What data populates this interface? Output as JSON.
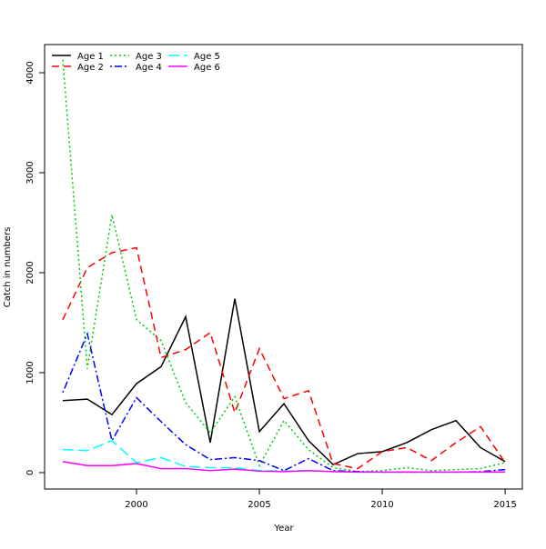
{
  "chart_data": {
    "type": "line",
    "title": "",
    "xlabel": "Year",
    "ylabel": "Catch in numbers",
    "xlim": [
      1996.26,
      2015.7
    ],
    "ylim": [
      -164,
      4282
    ],
    "xticks": [
      2000,
      2005,
      2010,
      2015
    ],
    "yticks": [
      0,
      1000,
      2000,
      3000,
      4000
    ],
    "grid": false,
    "legend_position": "top-left",
    "x": [
      1997,
      1998,
      1999,
      2000,
      2001,
      2002,
      2003,
      2004,
      2005,
      2006,
      2007,
      2008,
      2009,
      2010,
      2011,
      2012,
      2013,
      2014,
      2015
    ],
    "series": [
      {
        "name": "Age 1",
        "color": "#000000",
        "dash": "",
        "values": [
          720,
          735,
          580,
          890,
          1060,
          1560,
          300,
          1740,
          410,
          690,
          320,
          80,
          190,
          210,
          300,
          430,
          520,
          250,
          110
        ]
      },
      {
        "name": "Age 2",
        "color": "#ff0000",
        "dash": "8,5",
        "values": [
          1530,
          2050,
          2200,
          2250,
          1150,
          1230,
          1400,
          600,
          1240,
          740,
          820,
          90,
          40,
          210,
          250,
          120,
          300,
          460,
          100
        ]
      },
      {
        "name": "Age 3",
        "color": "#00cd00",
        "dash": "2,3",
        "values": [
          4130,
          1040,
          2580,
          1530,
          1320,
          700,
          400,
          760,
          70,
          520,
          230,
          50,
          10,
          20,
          50,
          20,
          30,
          40,
          100
        ]
      },
      {
        "name": "Age 4",
        "color": "#0000ff",
        "dash": "2,3,8,3",
        "values": [
          800,
          1390,
          320,
          750,
          510,
          280,
          130,
          150,
          120,
          20,
          140,
          20,
          10,
          5,
          5,
          5,
          5,
          10,
          30
        ]
      },
      {
        "name": "Age 5",
        "color": "#00ffff",
        "dash": "12,5",
        "values": [
          230,
          220,
          320,
          100,
          150,
          60,
          50,
          50,
          20,
          15,
          20,
          10,
          5,
          5,
          5,
          5,
          5,
          5,
          5
        ]
      },
      {
        "name": "Age 6",
        "color": "#ff00ff",
        "dash": "",
        "values": [
          110,
          70,
          70,
          90,
          40,
          40,
          20,
          35,
          15,
          10,
          20,
          10,
          5,
          5,
          5,
          5,
          5,
          5,
          5
        ]
      }
    ]
  }
}
